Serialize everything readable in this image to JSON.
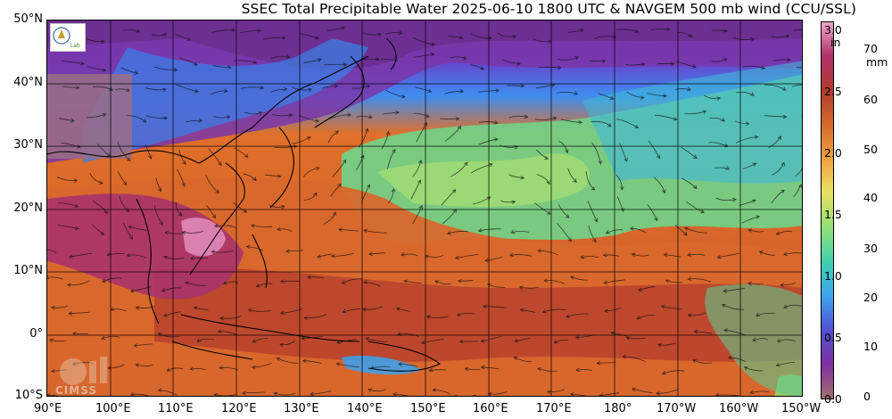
{
  "title": "SSEC Total Precipitable Water  2025-06-10 1800 UTC & NAVGEM 500 mb wind (CCU/SSL)",
  "lat_labels": [
    "50°N",
    "40°N",
    "30°N",
    "20°N",
    "10°N",
    "0°",
    "10°S"
  ],
  "lon_labels": [
    "90°E",
    "100°E",
    "110°E",
    "120°E",
    "130°E",
    "140°E",
    "150°E",
    "160°E",
    "170°E",
    "180°",
    "170°W",
    "160°W",
    "150°W"
  ],
  "colorbar": {
    "unit_in": "in",
    "unit_mm": "mm",
    "ticks_in": [
      "3.0",
      "2.5",
      "2.0",
      "1.5",
      "1.0",
      "0.5",
      "0.0"
    ],
    "ticks_mm": [
      "70",
      "60",
      "50",
      "40",
      "30",
      "20",
      "10",
      "0"
    ],
    "colors": [
      "#f0a8c8",
      "#b0306a",
      "#b03a2e",
      "#d2692a",
      "#f0a040",
      "#e8e060",
      "#8ee07a",
      "#3fd0b0",
      "#3fa0f0",
      "#5050d0",
      "#8030a0",
      "#a07070"
    ]
  },
  "logos": {
    "cimss": "CIMSS",
    "left_icon": "ssec-logo"
  }
}
